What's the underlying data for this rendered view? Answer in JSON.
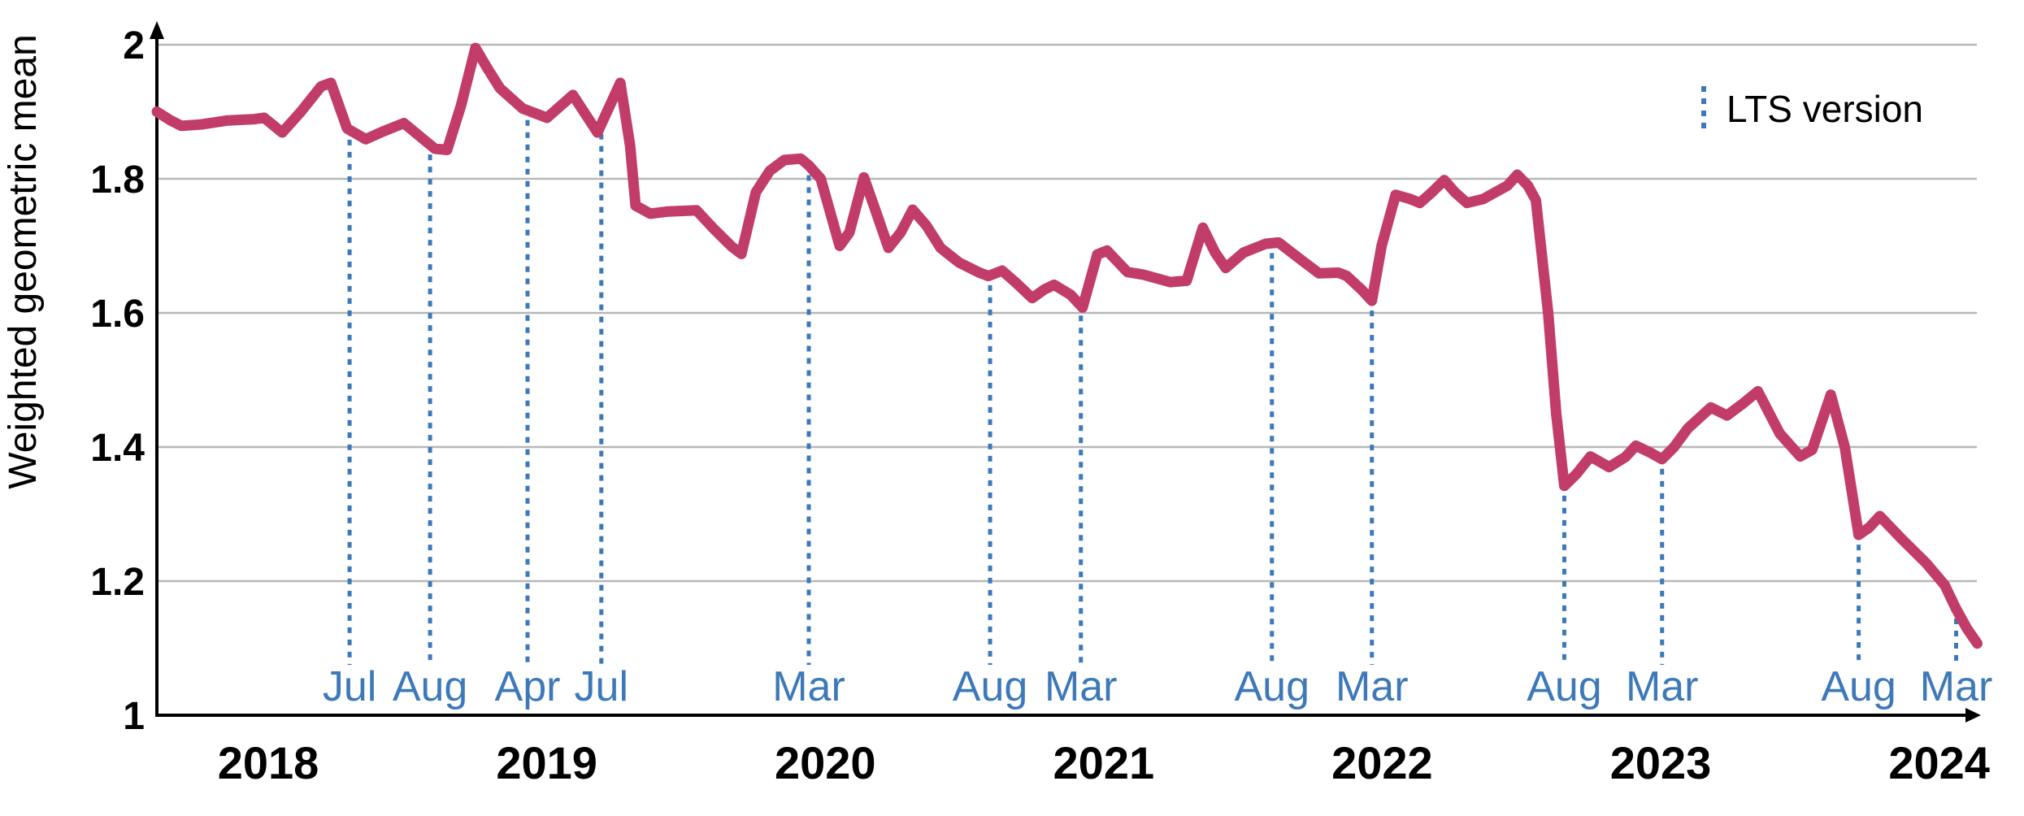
{
  "chart_data": {
    "type": "line",
    "title": "",
    "ylabel": "Weighted geometric mean",
    "xlabel": "",
    "grid": "horizontal",
    "legend": {
      "position": "top-right",
      "entries": [
        {
          "label": "LTS version",
          "style": "vertical-dotted-line"
        }
      ]
    },
    "colors": {
      "series": "#c23c6a",
      "lts_line": "#3d79b8",
      "month_label": "#3d79b8",
      "grid": "#b7b7b7",
      "axis": "#000000",
      "tick_text": "#000000"
    },
    "x_axis": {
      "start": 2017.6,
      "end": 2024.15,
      "ticks": [
        2018,
        2019,
        2020,
        2021,
        2022,
        2023,
        2024
      ]
    },
    "y_axis": {
      "min": 1,
      "max": 2,
      "ticks": [
        1,
        1.2,
        1.4,
        1.6,
        1.8,
        2
      ],
      "tick_labels": [
        "1",
        "1.2",
        "1.4",
        "1.6",
        "1.8",
        "2"
      ]
    },
    "lts_lines": [
      {
        "t": 2018.292,
        "label": "Jul"
      },
      {
        "t": 2018.581,
        "label": "Aug"
      },
      {
        "t": 2018.931,
        "label": "Apr"
      },
      {
        "t": 2019.196,
        "label": "Jul"
      },
      {
        "t": 2019.941,
        "label": "Mar"
      },
      {
        "t": 2020.592,
        "label": "Aug"
      },
      {
        "t": 2020.918,
        "label": "Mar"
      },
      {
        "t": 2021.604,
        "label": "Aug"
      },
      {
        "t": 2021.963,
        "label": "Mar"
      },
      {
        "t": 2022.654,
        "label": "Aug"
      },
      {
        "t": 2023.005,
        "label": "Mar"
      },
      {
        "t": 2023.711,
        "label": "Aug"
      },
      {
        "t": 2024.061,
        "label": "Mar"
      }
    ],
    "series": [
      {
        "name": "Weighted geometric mean",
        "points": [
          [
            2017.6,
            1.9
          ],
          [
            2017.65,
            1.887
          ],
          [
            2017.688,
            1.879
          ],
          [
            2017.758,
            1.881
          ],
          [
            2017.854,
            1.887
          ],
          [
            2017.95,
            1.889
          ],
          [
            2017.985,
            1.891
          ],
          [
            2018.05,
            1.869
          ],
          [
            2018.117,
            1.9
          ],
          [
            2018.19,
            1.938
          ],
          [
            2018.225,
            1.943
          ],
          [
            2018.283,
            1.875
          ],
          [
            2018.35,
            1.859
          ],
          [
            2018.409,
            1.87
          ],
          [
            2018.487,
            1.883
          ],
          [
            2018.554,
            1.86
          ],
          [
            2018.598,
            1.845
          ],
          [
            2018.642,
            1.843
          ],
          [
            2018.692,
            1.909
          ],
          [
            2018.744,
            1.995
          ],
          [
            2018.788,
            1.964
          ],
          [
            2018.832,
            1.935
          ],
          [
            2018.913,
            1.905
          ],
          [
            2019.001,
            1.891
          ],
          [
            2019.094,
            1.925
          ],
          [
            2019.182,
            1.869
          ],
          [
            2019.264,
            1.943
          ],
          [
            2019.299,
            1.85
          ],
          [
            2019.319,
            1.76
          ],
          [
            2019.372,
            1.748
          ],
          [
            2019.43,
            1.751
          ],
          [
            2019.538,
            1.753
          ],
          [
            2019.596,
            1.727
          ],
          [
            2019.664,
            1.699
          ],
          [
            2019.699,
            1.688
          ],
          [
            2019.751,
            1.78
          ],
          [
            2019.801,
            1.812
          ],
          [
            2019.853,
            1.828
          ],
          [
            2019.912,
            1.83
          ],
          [
            2019.941,
            1.82
          ],
          [
            2019.984,
            1.8
          ],
          [
            2020.052,
            1.7
          ],
          [
            2020.087,
            1.72
          ],
          [
            2020.139,
            1.802
          ],
          [
            2020.183,
            1.75
          ],
          [
            2020.227,
            1.697
          ],
          [
            2020.271,
            1.72
          ],
          [
            2020.314,
            1.754
          ],
          [
            2020.364,
            1.73
          ],
          [
            2020.414,
            1.697
          ],
          [
            2020.481,
            1.675
          ],
          [
            2020.554,
            1.66
          ],
          [
            2020.586,
            1.655
          ],
          [
            2020.635,
            1.663
          ],
          [
            2020.685,
            1.645
          ],
          [
            2020.743,
            1.622
          ],
          [
            2020.787,
            1.635
          ],
          [
            2020.822,
            1.642
          ],
          [
            2020.881,
            1.627
          ],
          [
            2020.924,
            1.608
          ],
          [
            2020.977,
            1.687
          ],
          [
            2021.012,
            1.693
          ],
          [
            2021.085,
            1.661
          ],
          [
            2021.143,
            1.657
          ],
          [
            2021.239,
            1.646
          ],
          [
            2021.298,
            1.648
          ],
          [
            2021.356,
            1.727
          ],
          [
            2021.4,
            1.69
          ],
          [
            2021.438,
            1.667
          ],
          [
            2021.502,
            1.69
          ],
          [
            2021.581,
            1.703
          ],
          [
            2021.628,
            1.705
          ],
          [
            2021.706,
            1.68
          ],
          [
            2021.773,
            1.659
          ],
          [
            2021.843,
            1.66
          ],
          [
            2021.873,
            1.655
          ],
          [
            2021.925,
            1.635
          ],
          [
            2021.963,
            1.618
          ],
          [
            2021.998,
            1.7
          ],
          [
            2022.048,
            1.776
          ],
          [
            2022.1,
            1.77
          ],
          [
            2022.135,
            1.764
          ],
          [
            2022.179,
            1.78
          ],
          [
            2022.223,
            1.798
          ],
          [
            2022.261,
            1.78
          ],
          [
            2022.304,
            1.764
          ],
          [
            2022.363,
            1.77
          ],
          [
            2022.415,
            1.782
          ],
          [
            2022.45,
            1.79
          ],
          [
            2022.485,
            1.806
          ],
          [
            2022.523,
            1.79
          ],
          [
            2022.552,
            1.768
          ],
          [
            2022.596,
            1.6
          ],
          [
            2022.625,
            1.45
          ],
          [
            2022.654,
            1.342
          ],
          [
            2022.698,
            1.36
          ],
          [
            2022.748,
            1.386
          ],
          [
            2022.815,
            1.37
          ],
          [
            2022.873,
            1.385
          ],
          [
            2022.911,
            1.402
          ],
          [
            2022.961,
            1.392
          ],
          [
            2023.005,
            1.382
          ],
          [
            2023.048,
            1.4
          ],
          [
            2023.098,
            1.428
          ],
          [
            2023.18,
            1.459
          ],
          [
            2023.238,
            1.447
          ],
          [
            2023.296,
            1.465
          ],
          [
            2023.349,
            1.483
          ],
          [
            2023.428,
            1.42
          ],
          [
            2023.501,
            1.386
          ],
          [
            2023.544,
            1.396
          ],
          [
            2023.611,
            1.478
          ],
          [
            2023.661,
            1.4
          ],
          [
            2023.711,
            1.269
          ],
          [
            2023.749,
            1.28
          ],
          [
            2023.787,
            1.297
          ],
          [
            2023.865,
            1.263
          ],
          [
            2023.953,
            1.227
          ],
          [
            2024.02,
            1.194
          ],
          [
            2024.058,
            1.161
          ],
          [
            2024.099,
            1.13
          ],
          [
            2024.137,
            1.107
          ]
        ]
      }
    ]
  },
  "legend": {
    "lts_label": "LTS version"
  },
  "axis": {
    "y_label": "Weighted geometric mean"
  }
}
